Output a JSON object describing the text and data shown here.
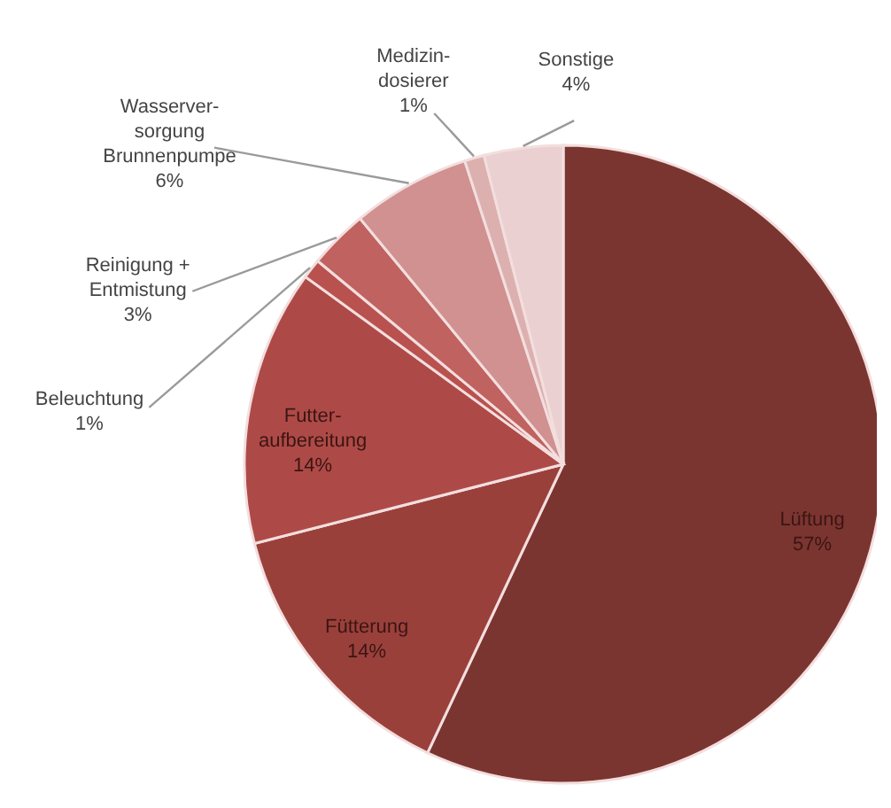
{
  "chart_data": {
    "type": "pie",
    "categories": [
      "Lüftung",
      "Fütterung",
      "Futter-\naufbereitung",
      "Beleuchtung",
      "Reinigung +\nEntmistung",
      "Wasserver-\nsorgung\nBrunnenpumpe",
      "Medizin-\ndosierer",
      "Sonstige"
    ],
    "values": [
      57,
      14,
      14,
      1,
      3,
      6,
      1,
      4
    ],
    "value_labels": [
      "57%",
      "14%",
      "14%",
      "1%",
      "3%",
      "6%",
      "1%",
      "4%"
    ],
    "colors": [
      "#7b3530",
      "#9a403b",
      "#ad4a47",
      "#b9524f",
      "#c0625f",
      "#d09190",
      "#ddb0b0",
      "#ead0d0"
    ]
  }
}
